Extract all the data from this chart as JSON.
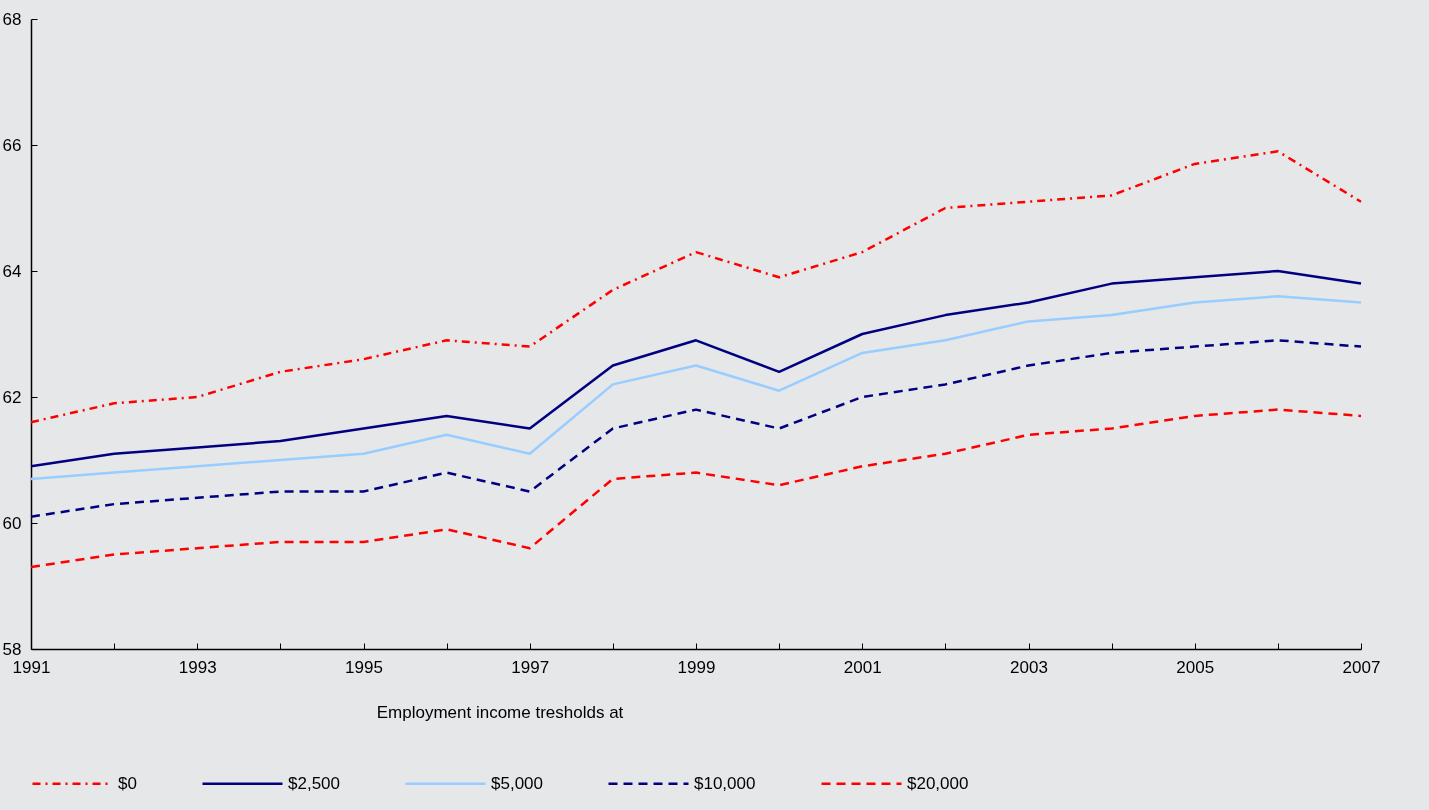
{
  "chart_data": {
    "type": "line",
    "legend_title": "Employment  income tresholds at",
    "legend": "bottom",
    "x": [
      1991,
      1992,
      1993,
      1994,
      1995,
      1996,
      1997,
      1998,
      1999,
      2000,
      2001,
      2002,
      2003,
      2004,
      2005,
      2006,
      2007
    ],
    "xlim": [
      1991,
      2007
    ],
    "xticks": [
      1991,
      {
        "value": 1992,
        "label": null
      },
      1993,
      {
        "value": 1994,
        "label": null
      },
      1995,
      {
        "value": 1996,
        "label": null
      },
      1997,
      {
        "value": 1998,
        "label": null
      },
      1999,
      {
        "value": 2000,
        "label": null
      },
      2001,
      {
        "value": 2002,
        "label": null
      },
      2003,
      {
        "value": 2004,
        "label": null
      },
      2005,
      {
        "value": 2006,
        "label": null
      },
      2007
    ],
    "ylim": [
      58,
      68
    ],
    "yticks": [
      58,
      60,
      62,
      64,
      66,
      68
    ],
    "grid": false,
    "marker": "none",
    "series": [
      {
        "name": "$0",
        "color": "#ff0000",
        "line_style": "dashdot",
        "values": [
          61.6,
          61.9,
          62.0,
          62.4,
          62.6,
          62.9,
          62.8,
          63.7,
          64.3,
          63.9,
          64.3,
          65.0,
          65.1,
          65.2,
          65.7,
          65.9,
          65.1
        ]
      },
      {
        "name": "$2,500",
        "color": "#000080",
        "line_style": "solid",
        "values": [
          60.9,
          61.1,
          61.2,
          61.3,
          61.5,
          61.7,
          61.5,
          62.5,
          62.9,
          62.4,
          63.0,
          63.3,
          63.5,
          63.8,
          63.9,
          64.0,
          63.8
        ]
      },
      {
        "name": "$5,000",
        "color": "#99ccff",
        "line_style": "solid",
        "values": [
          60.7,
          60.8,
          60.9,
          61.0,
          61.1,
          61.4,
          61.1,
          62.2,
          62.5,
          62.1,
          62.7,
          62.9,
          63.2,
          63.3,
          63.5,
          63.6,
          63.5
        ]
      },
      {
        "name": "$10,000",
        "color": "#000080",
        "line_style": "dashed",
        "values": [
          60.1,
          60.3,
          60.4,
          60.5,
          60.5,
          60.8,
          60.5,
          61.5,
          61.8,
          61.5,
          62.0,
          62.2,
          62.5,
          62.7,
          62.8,
          62.9,
          62.8
        ]
      },
      {
        "name": "$20,000",
        "color": "#ff0000",
        "line_style": "dashed",
        "values": [
          59.3,
          59.5,
          59.6,
          59.7,
          59.7,
          59.9,
          59.6,
          60.7,
          60.8,
          60.6,
          60.9,
          61.1,
          61.4,
          61.5,
          61.7,
          61.8,
          61.7
        ]
      }
    ]
  }
}
